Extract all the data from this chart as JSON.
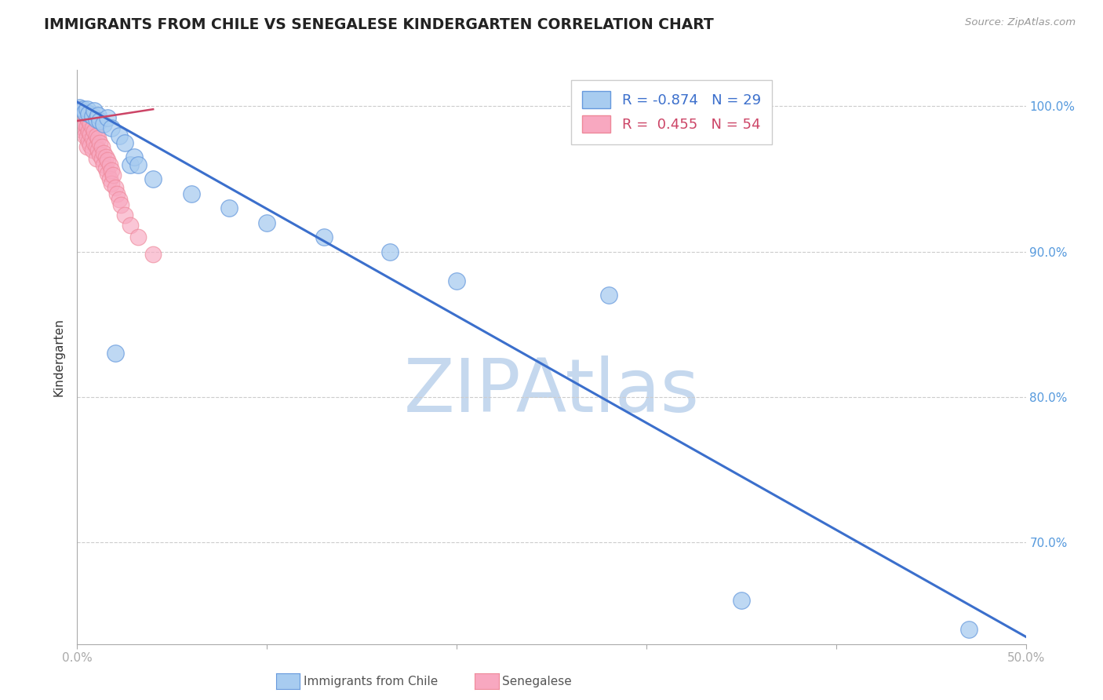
{
  "title": "IMMIGRANTS FROM CHILE VS SENEGALESE KINDERGARTEN CORRELATION CHART",
  "source": "Source: ZipAtlas.com",
  "ylabel": "Kindergarten",
  "blue_label": "Immigrants from Chile",
  "pink_label": "Senegalese",
  "blue_color": "#A8CCF0",
  "pink_color": "#F8A8C0",
  "blue_edge_color": "#6699DD",
  "pink_edge_color": "#EE8899",
  "blue_line_color": "#3B6FCC",
  "watermark": "ZIPAtlas",
  "watermark_color": "#C5D8EE",
  "x_min": 0.0,
  "x_max": 0.5,
  "y_min": 0.63,
  "y_max": 1.025,
  "blue_R": -0.874,
  "blue_N": 29,
  "pink_R": 0.455,
  "pink_N": 54,
  "blue_scatter_x": [
    0.001,
    0.003,
    0.004,
    0.005,
    0.006,
    0.008,
    0.009,
    0.01,
    0.011,
    0.012,
    0.014,
    0.016,
    0.018,
    0.02,
    0.022,
    0.025,
    0.028,
    0.03,
    0.032,
    0.04,
    0.06,
    0.08,
    0.1,
    0.13,
    0.165,
    0.2,
    0.28,
    0.35,
    0.47
  ],
  "blue_scatter_y": [
    0.999,
    0.998,
    0.996,
    0.998,
    0.995,
    0.993,
    0.997,
    0.991,
    0.994,
    0.99,
    0.988,
    0.992,
    0.985,
    0.83,
    0.98,
    0.975,
    0.96,
    0.965,
    0.96,
    0.95,
    0.94,
    0.93,
    0.92,
    0.91,
    0.9,
    0.88,
    0.87,
    0.66,
    0.64
  ],
  "pink_scatter_x": [
    0.001,
    0.001,
    0.002,
    0.002,
    0.002,
    0.003,
    0.003,
    0.003,
    0.004,
    0.004,
    0.004,
    0.005,
    0.005,
    0.005,
    0.005,
    0.006,
    0.006,
    0.006,
    0.007,
    0.007,
    0.007,
    0.008,
    0.008,
    0.008,
    0.009,
    0.009,
    0.01,
    0.01,
    0.01,
    0.011,
    0.011,
    0.012,
    0.012,
    0.013,
    0.013,
    0.014,
    0.014,
    0.015,
    0.015,
    0.016,
    0.016,
    0.017,
    0.017,
    0.018,
    0.018,
    0.019,
    0.02,
    0.021,
    0.022,
    0.023,
    0.025,
    0.028,
    0.032,
    0.04
  ],
  "pink_scatter_y": [
    0.998,
    0.993,
    0.996,
    0.989,
    0.984,
    0.997,
    0.991,
    0.985,
    0.994,
    0.988,
    0.98,
    0.992,
    0.986,
    0.979,
    0.972,
    0.99,
    0.983,
    0.976,
    0.988,
    0.981,
    0.973,
    0.985,
    0.978,
    0.97,
    0.983,
    0.975,
    0.98,
    0.972,
    0.964,
    0.978,
    0.97,
    0.975,
    0.967,
    0.972,
    0.964,
    0.968,
    0.96,
    0.965,
    0.957,
    0.963,
    0.954,
    0.96,
    0.95,
    0.956,
    0.947,
    0.953,
    0.944,
    0.94,
    0.936,
    0.932,
    0.925,
    0.918,
    0.91,
    0.898
  ],
  "blue_line_x": [
    0.0,
    0.5
  ],
  "blue_line_y": [
    1.003,
    0.635
  ],
  "pink_line_x": [
    0.0,
    0.04
  ],
  "pink_line_y": [
    0.99,
    0.998
  ],
  "grid_yticks": [
    1.0,
    0.9,
    0.8,
    0.7
  ],
  "right_tick_labels": [
    "100.0%",
    "90.0%",
    "80.0%",
    "70.0%"
  ],
  "xtick_positions": [
    0.0,
    0.1,
    0.2,
    0.3,
    0.4,
    0.5
  ],
  "xtick_labels": [
    "0.0%",
    "",
    "",
    "",
    "",
    "50.0%"
  ],
  "grid_color": "#CCCCCC",
  "axis_color": "#AAAAAA",
  "right_tick_color": "#5599DD",
  "background_color": "#FFFFFF"
}
